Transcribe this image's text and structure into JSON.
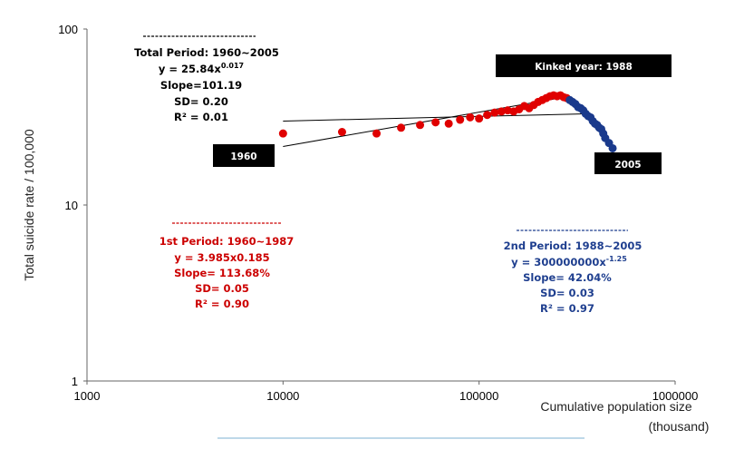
{
  "chart_data": {
    "type": "scatter",
    "x_scale": "log",
    "y_scale": "log",
    "xlim": [
      1000,
      1000000
    ],
    "ylim": [
      1,
      100
    ],
    "grid": false,
    "x_ticks": [
      "1000",
      "10000",
      "100000",
      "1000000"
    ],
    "y_ticks": [
      "1",
      "10",
      "100"
    ],
    "ylabel": "Total suicide rate / 100,000",
    "xlabel_line1": "Cumulative population size",
    "xlabel_line2": "(thousand)",
    "series": [
      {
        "period": "1960-1987",
        "color": "#e00000",
        "points": [
          [
            10000,
            25.5
          ],
          [
            20000,
            26
          ],
          [
            30000,
            25.5
          ],
          [
            40000,
            27.5
          ],
          [
            50000,
            28.5
          ],
          [
            60000,
            29.5
          ],
          [
            70000,
            29
          ],
          [
            80000,
            30.5
          ],
          [
            90000,
            31.5
          ],
          [
            100000,
            31
          ],
          [
            110000,
            32.5
          ],
          [
            120000,
            33.5
          ],
          [
            130000,
            34
          ],
          [
            140000,
            34.5
          ],
          [
            150000,
            34
          ],
          [
            160000,
            35
          ],
          [
            170000,
            36.5
          ],
          [
            180000,
            35.5
          ],
          [
            190000,
            37
          ],
          [
            200000,
            38.5
          ],
          [
            210000,
            39.5
          ],
          [
            220000,
            40.5
          ],
          [
            230000,
            41.5
          ],
          [
            240000,
            42
          ],
          [
            250000,
            41.5
          ],
          [
            260000,
            42
          ],
          [
            270000,
            41
          ],
          [
            280000,
            40.5
          ]
        ]
      },
      {
        "period": "1988-2005",
        "color": "#1a3a8c",
        "points": [
          [
            290000,
            39.5
          ],
          [
            300000,
            38.5
          ],
          [
            310000,
            37.5
          ],
          [
            320000,
            36
          ],
          [
            330000,
            35.5
          ],
          [
            340000,
            34.5
          ],
          [
            350000,
            33
          ],
          [
            360000,
            32
          ],
          [
            370000,
            31.5
          ],
          [
            380000,
            30
          ],
          [
            390000,
            29
          ],
          [
            400000,
            28.5
          ],
          [
            410000,
            27.5
          ],
          [
            420000,
            27
          ],
          [
            430000,
            25.5
          ],
          [
            440000,
            24
          ],
          [
            460000,
            22.5
          ],
          [
            480000,
            21
          ]
        ]
      }
    ],
    "lines": [
      {
        "name": "total",
        "from": [
          10000,
          30
        ],
        "to": [
          370000,
          33
        ]
      },
      {
        "name": "period1",
        "from": [
          10000,
          21.5
        ],
        "to": [
          290000,
          41.5
        ]
      }
    ],
    "annotations": {
      "total": {
        "color": "#000000",
        "lines": [
          "Total Period: 1960~2005",
          "y = 25.84x",
          "Slope=101.19",
          "SD= 0.20",
          "R² = 0.01"
        ],
        "exponent": "0.017"
      },
      "p1": {
        "color": "#cc0000",
        "lines": [
          "Period: 1960~1987",
          "y = 3.985x0.185",
          "Slope= 113.68%",
          "SD= 0.05",
          "R² = 0.90"
        ],
        "ordinal": "1st"
      },
      "p2": {
        "color": "#1f3f8f",
        "lines": [
          "Period: 1988~2005",
          "y = 300000000x",
          "Slope= 42.04%",
          "SD= 0.03",
          "R² = 0.97"
        ],
        "ordinal": "2nd",
        "exponent": "-1.25"
      },
      "kinked": "Kinked year: 1988",
      "start_year": "1960",
      "end_year": "2005"
    }
  }
}
